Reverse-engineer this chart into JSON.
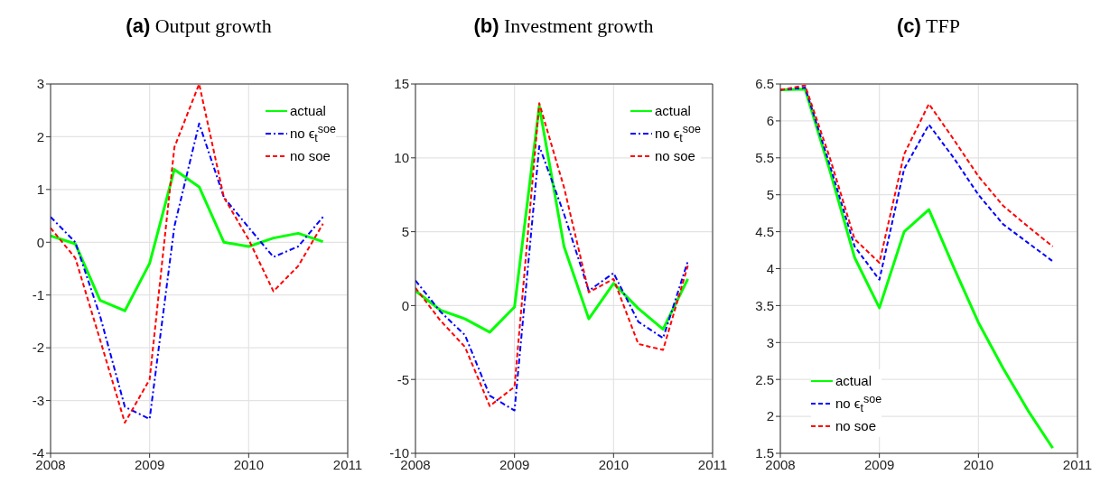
{
  "chart_data": [
    {
      "type": "line",
      "title": "(a) Output growth",
      "x": [
        2008,
        2008.25,
        2008.5,
        2008.75,
        2009,
        2009.25,
        2009.5,
        2009.75,
        2010,
        2010.25,
        2010.5,
        2010.75
      ],
      "xlim": [
        2008,
        2011
      ],
      "xticks": [
        2008,
        2009,
        2010,
        2011
      ],
      "ylim": [
        -4,
        3
      ],
      "yticks": [
        -4,
        -3,
        -2,
        -1,
        0,
        1,
        2,
        3
      ],
      "grid": true,
      "legend": "top right",
      "marker": "none",
      "series": [
        {
          "name": "actual",
          "color": "#00ff00",
          "line_style": "solid",
          "values": [
            0.12,
            -0.03,
            -1.1,
            -1.3,
            -0.4,
            1.38,
            1.05,
            0,
            -0.08,
            0.08,
            0.17,
            0.01
          ]
        },
        {
          "name": "no ϵ$_{t}$$^{soe}$",
          "color": "#0000ff",
          "line_style": "dashdot",
          "values": [
            0.48,
            0.0,
            -1.4,
            -3.12,
            -3.35,
            0.3,
            2.25,
            0.85,
            0.28,
            -0.28,
            -0.08,
            0.48
          ]
        },
        {
          "name": "no soe",
          "color": "#ff0000",
          "line_style": "dashed",
          "values": [
            0.27,
            -0.3,
            -1.85,
            -3.42,
            -2.6,
            1.8,
            3.0,
            0.85,
            0.05,
            -0.93,
            -0.45,
            0.35
          ]
        }
      ]
    },
    {
      "type": "line",
      "title": "(b) Investment growth",
      "x": [
        2008,
        2008.25,
        2008.5,
        2008.75,
        2009,
        2009.25,
        2009.5,
        2009.75,
        2010,
        2010.25,
        2010.5,
        2010.75
      ],
      "xlim": [
        2008,
        2011
      ],
      "xticks": [
        2008,
        2009,
        2010,
        2011
      ],
      "ylim": [
        -10,
        15
      ],
      "yticks": [
        -10,
        -5,
        0,
        5,
        10,
        15
      ],
      "grid": true,
      "legend": "top right",
      "marker": "none",
      "series": [
        {
          "name": "actual",
          "color": "#00ff00",
          "line_style": "solid",
          "values": [
            1.0,
            -0.3,
            -0.9,
            -1.8,
            -0.1,
            13.5,
            4.0,
            -0.9,
            1.5,
            -0.2,
            -1.6,
            1.8
          ]
        },
        {
          "name": "no ϵ$_{t}$$^{soe}$",
          "color": "#0000ff",
          "line_style": "dashdot",
          "values": [
            1.7,
            -0.4,
            -2.0,
            -6.1,
            -7.1,
            10.8,
            6.2,
            1.0,
            2.2,
            -1.1,
            -2.2,
            3.0
          ]
        },
        {
          "name": "no soe",
          "color": "#ff0000",
          "line_style": "dashed",
          "values": [
            1.2,
            -1.0,
            -2.8,
            -6.8,
            -5.5,
            13.7,
            8.0,
            0.9,
            1.8,
            -2.6,
            -3.0,
            2.7
          ]
        }
      ]
    },
    {
      "type": "line",
      "title": "(c) TFP",
      "x": [
        2008,
        2008.25,
        2008.5,
        2008.75,
        2009,
        2009.25,
        2009.5,
        2009.75,
        2010,
        2010.25,
        2010.5,
        2010.75
      ],
      "xlim": [
        2008,
        2011
      ],
      "xticks": [
        2008,
        2009,
        2010,
        2011
      ],
      "ylim": [
        1.5,
        6.5
      ],
      "yticks": [
        1.5,
        2,
        2.5,
        3,
        3.5,
        4,
        4.5,
        5,
        5.5,
        6,
        6.5
      ],
      "grid": true,
      "legend": "bottom left",
      "marker": "none",
      "series": [
        {
          "name": "actual",
          "color": "#00ff00",
          "line_style": "solid",
          "values": [
            6.42,
            6.43,
            5.33,
            4.15,
            3.47,
            4.5,
            4.8,
            4.02,
            3.27,
            2.65,
            2.08,
            1.57
          ]
        },
        {
          "name": "no ϵ$_{t}$$^{soe}$",
          "color": "#0000ff",
          "line_style": "dashed",
          "values": [
            6.42,
            6.45,
            5.4,
            4.3,
            3.85,
            5.35,
            5.95,
            5.5,
            5.0,
            4.6,
            4.35,
            4.1
          ]
        },
        {
          "name": "no soe",
          "color": "#ff0000",
          "line_style": "dashed",
          "values": [
            6.42,
            6.48,
            5.5,
            4.4,
            4.08,
            5.55,
            6.23,
            5.75,
            5.25,
            4.85,
            4.57,
            4.3
          ]
        }
      ]
    }
  ]
}
